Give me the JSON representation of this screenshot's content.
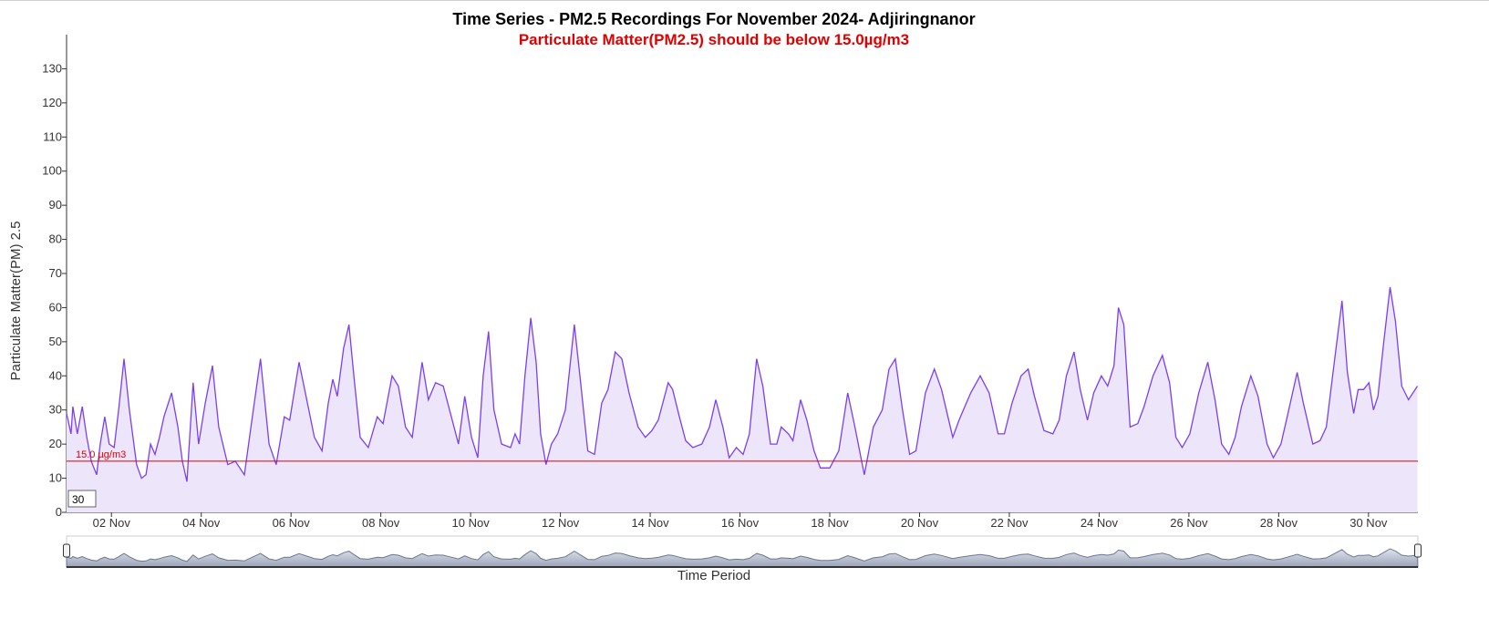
{
  "chart_data": {
    "type": "area-line",
    "title": "Time Series - PM2.5 Recordings For November 2024- Adjiringnanor",
    "subtitle": "Particulate Matter(PM2.5) should be below 15.0µg/m3",
    "y_label": "Particulate Matter(PM) 2.5",
    "x_label": "Time Period",
    "color": "#7b3ff2",
    "fill": "#ede6fb",
    "threshold": {
      "value": 15,
      "label": "15.0 µg/m3",
      "color": "#e00000"
    },
    "range_input": "30",
    "xlim": [
      1,
      31.1
    ],
    "xticks": [
      {
        "value": 2,
        "label": "02 Nov"
      },
      {
        "value": 4,
        "label": "04 Nov"
      },
      {
        "value": 6,
        "label": "06 Nov"
      },
      {
        "value": 8,
        "label": "08 Nov"
      },
      {
        "value": 10,
        "label": "10 Nov"
      },
      {
        "value": 12,
        "label": "12 Nov"
      },
      {
        "value": 14,
        "label": "14 Nov"
      },
      {
        "value": 16,
        "label": "16 Nov"
      },
      {
        "value": 18,
        "label": "18 Nov"
      },
      {
        "value": 20,
        "label": "20 Nov"
      },
      {
        "value": 22,
        "label": "22 Nov"
      },
      {
        "value": 24,
        "label": "24 Nov"
      },
      {
        "value": 26,
        "label": "26 Nov"
      },
      {
        "value": 28,
        "label": "28 Nov"
      },
      {
        "value": 30,
        "label": "30 Nov"
      }
    ],
    "ylim": [
      0,
      140
    ],
    "yticks": [
      0,
      10,
      20,
      30,
      40,
      50,
      60,
      70,
      80,
      90,
      100,
      110,
      120,
      130
    ],
    "x": [
      1.0,
      1.1,
      1.14,
      1.24,
      1.35,
      1.45,
      1.55,
      1.67,
      1.75,
      1.85,
      1.95,
      2.06,
      2.16,
      2.28,
      2.4,
      2.56,
      2.67,
      2.77,
      2.87,
      2.97,
      3.07,
      3.17,
      3.34,
      3.48,
      3.58,
      3.68,
      3.82,
      3.94,
      4.09,
      4.25,
      4.39,
      4.59,
      4.76,
      4.96,
      5.16,
      5.32,
      5.51,
      5.67,
      5.85,
      5.97,
      6.18,
      6.32,
      6.52,
      6.69,
      6.83,
      6.93,
      7.03,
      7.17,
      7.29,
      7.4,
      7.54,
      7.72,
      7.92,
      8.05,
      8.25,
      8.39,
      8.55,
      8.7,
      8.82,
      8.92,
      9.06,
      9.22,
      9.39,
      9.57,
      9.73,
      9.87,
      10.02,
      10.16,
      10.28,
      10.4,
      10.52,
      10.69,
      10.89,
      10.99,
      11.09,
      11.21,
      11.34,
      11.46,
      11.56,
      11.68,
      11.8,
      11.94,
      12.11,
      12.31,
      12.45,
      12.61,
      12.76,
      12.92,
      13.06,
      13.22,
      13.37,
      13.53,
      13.73,
      13.89,
      14.04,
      14.18,
      14.4,
      14.5,
      14.65,
      14.79,
      14.95,
      15.15,
      15.32,
      15.46,
      15.62,
      15.76,
      15.92,
      16.07,
      16.21,
      16.37,
      16.51,
      16.68,
      16.82,
      16.92,
      17.08,
      17.18,
      17.35,
      17.49,
      17.65,
      17.79,
      18.0,
      18.2,
      18.4,
      18.56,
      18.77,
      18.97,
      19.17,
      19.32,
      19.46,
      19.62,
      19.78,
      19.92,
      20.13,
      20.33,
      20.49,
      20.74,
      20.88,
      21.04,
      21.14,
      21.35,
      21.55,
      21.75,
      21.89,
      22.06,
      22.26,
      22.42,
      22.56,
      22.77,
      22.97,
      23.11,
      23.27,
      23.44,
      23.58,
      23.74,
      23.88,
      24.05,
      24.19,
      24.33,
      24.43,
      24.55,
      24.69,
      24.86,
      25.0,
      25.2,
      25.41,
      25.57,
      25.71,
      25.85,
      26.02,
      26.22,
      26.42,
      26.58,
      26.73,
      26.89,
      27.03,
      27.17,
      27.38,
      27.54,
      27.74,
      27.88,
      28.05,
      28.19,
      28.41,
      28.55,
      28.76,
      28.92,
      29.06,
      29.22,
      29.41,
      29.53,
      29.67,
      29.77,
      29.89,
      30.01,
      30.11,
      30.21,
      30.34,
      30.48,
      30.6,
      30.74,
      30.89,
      31.09
    ],
    "values": [
      29,
      23,
      31,
      23,
      31,
      22,
      15,
      11,
      20,
      28,
      20,
      19,
      30,
      45,
      30,
      14,
      10,
      11,
      20,
      17,
      22,
      28,
      35,
      25,
      15,
      9,
      38,
      20,
      32,
      43,
      25,
      14,
      15,
      11,
      30,
      45,
      20,
      14,
      28,
      27,
      44,
      35,
      22,
      18,
      32,
      39,
      34,
      48,
      55,
      40,
      22,
      19,
      28,
      26,
      40,
      37,
      25,
      22,
      34,
      44,
      33,
      38,
      37,
      28,
      20,
      34,
      22,
      16,
      40,
      53,
      30,
      20,
      19,
      23,
      20,
      40,
      57,
      44,
      23,
      14,
      20,
      23,
      30,
      55,
      38,
      18,
      17,
      32,
      36,
      47,
      45,
      35,
      25,
      22,
      24,
      27,
      38,
      36,
      28,
      21,
      19,
      20,
      25,
      33,
      25,
      16,
      19,
      17,
      23,
      45,
      37,
      20,
      20,
      25,
      23,
      21,
      33,
      27,
      18,
      13,
      13,
      18,
      35,
      25,
      11,
      25,
      30,
      42,
      45,
      30,
      17,
      18,
      35,
      42,
      36,
      22,
      27,
      32,
      35,
      40,
      35,
      23,
      23,
      32,
      40,
      42,
      34,
      24,
      23,
      27,
      40,
      47,
      36,
      27,
      35,
      40,
      37,
      43,
      60,
      55,
      25,
      26,
      31,
      40,
      46,
      38,
      22,
      19,
      23,
      35,
      44,
      33,
      20,
      17,
      22,
      31,
      40,
      34,
      20,
      16,
      20,
      28,
      41,
      32,
      20,
      21,
      25,
      42,
      62,
      41,
      29,
      36,
      36,
      38,
      30,
      34,
      50,
      66,
      56,
      37,
      33,
      37
    ]
  }
}
